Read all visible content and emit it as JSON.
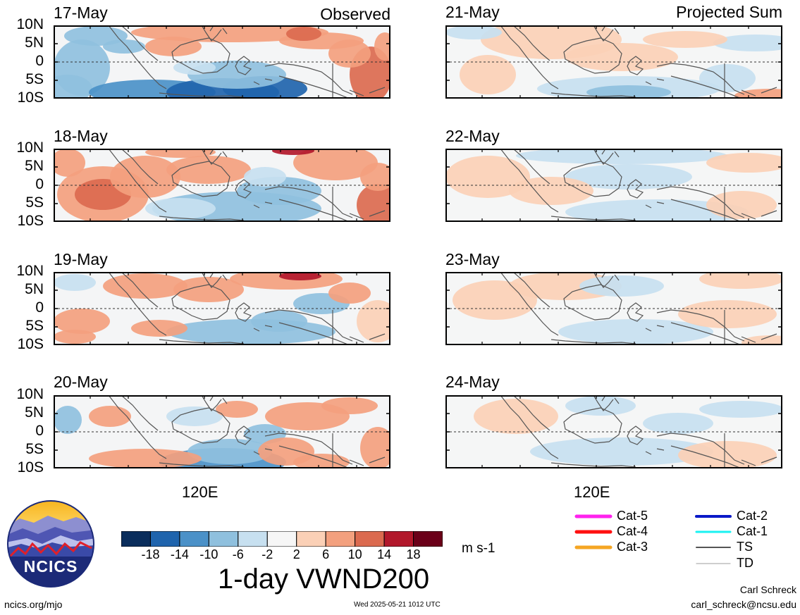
{
  "left_column": {
    "tag": "Observed",
    "panels": [
      {
        "date": "17-May"
      },
      {
        "date": "18-May"
      },
      {
        "date": "19-May"
      },
      {
        "date": "20-May"
      }
    ]
  },
  "right_column": {
    "tag": "Projected Sum",
    "panels": [
      {
        "date": "21-May"
      },
      {
        "date": "22-May"
      },
      {
        "date": "23-May"
      },
      {
        "date": "24-May"
      }
    ]
  },
  "lat_labels": [
    "10N",
    "5N",
    "0",
    "5S",
    "10S"
  ],
  "x_label": "120E",
  "colorbar": {
    "colors": [
      "#0a2d5c",
      "#1f64ad",
      "#4b91c8",
      "#8fc0de",
      "#c7e0f0",
      "#f6f6f6",
      "#fbd0b6",
      "#f3a07e",
      "#db6a4f",
      "#b2182b",
      "#6b0019"
    ],
    "tick_labels": [
      "-18",
      "-14",
      "-10",
      "-6",
      "-2",
      "2",
      "6",
      "10",
      "14",
      "18"
    ],
    "units": "m s-1",
    "title": "1-day VWND200"
  },
  "legend": [
    {
      "label": "Cat-5",
      "color": "#ff22ee"
    },
    {
      "label": "Cat-4",
      "color": "#ff1010"
    },
    {
      "label": "Cat-3",
      "color": "#f5a623"
    },
    {
      "label": "Cat-2",
      "color": "#0a1ac8"
    },
    {
      "label": "Cat-1",
      "color": "#19f2f2"
    },
    {
      "label": "TS",
      "color": "#555555"
    },
    {
      "label": "TD",
      "color": "#b0b0b0"
    }
  ],
  "logo": {
    "text": "NCICS"
  },
  "footer": {
    "url": "ncics.org/mjo",
    "timestamp": "Wed 2025-05-21 1012 UTC",
    "author": "Carl Schreck",
    "email": "carl_schreck@ncsu.edu"
  }
}
